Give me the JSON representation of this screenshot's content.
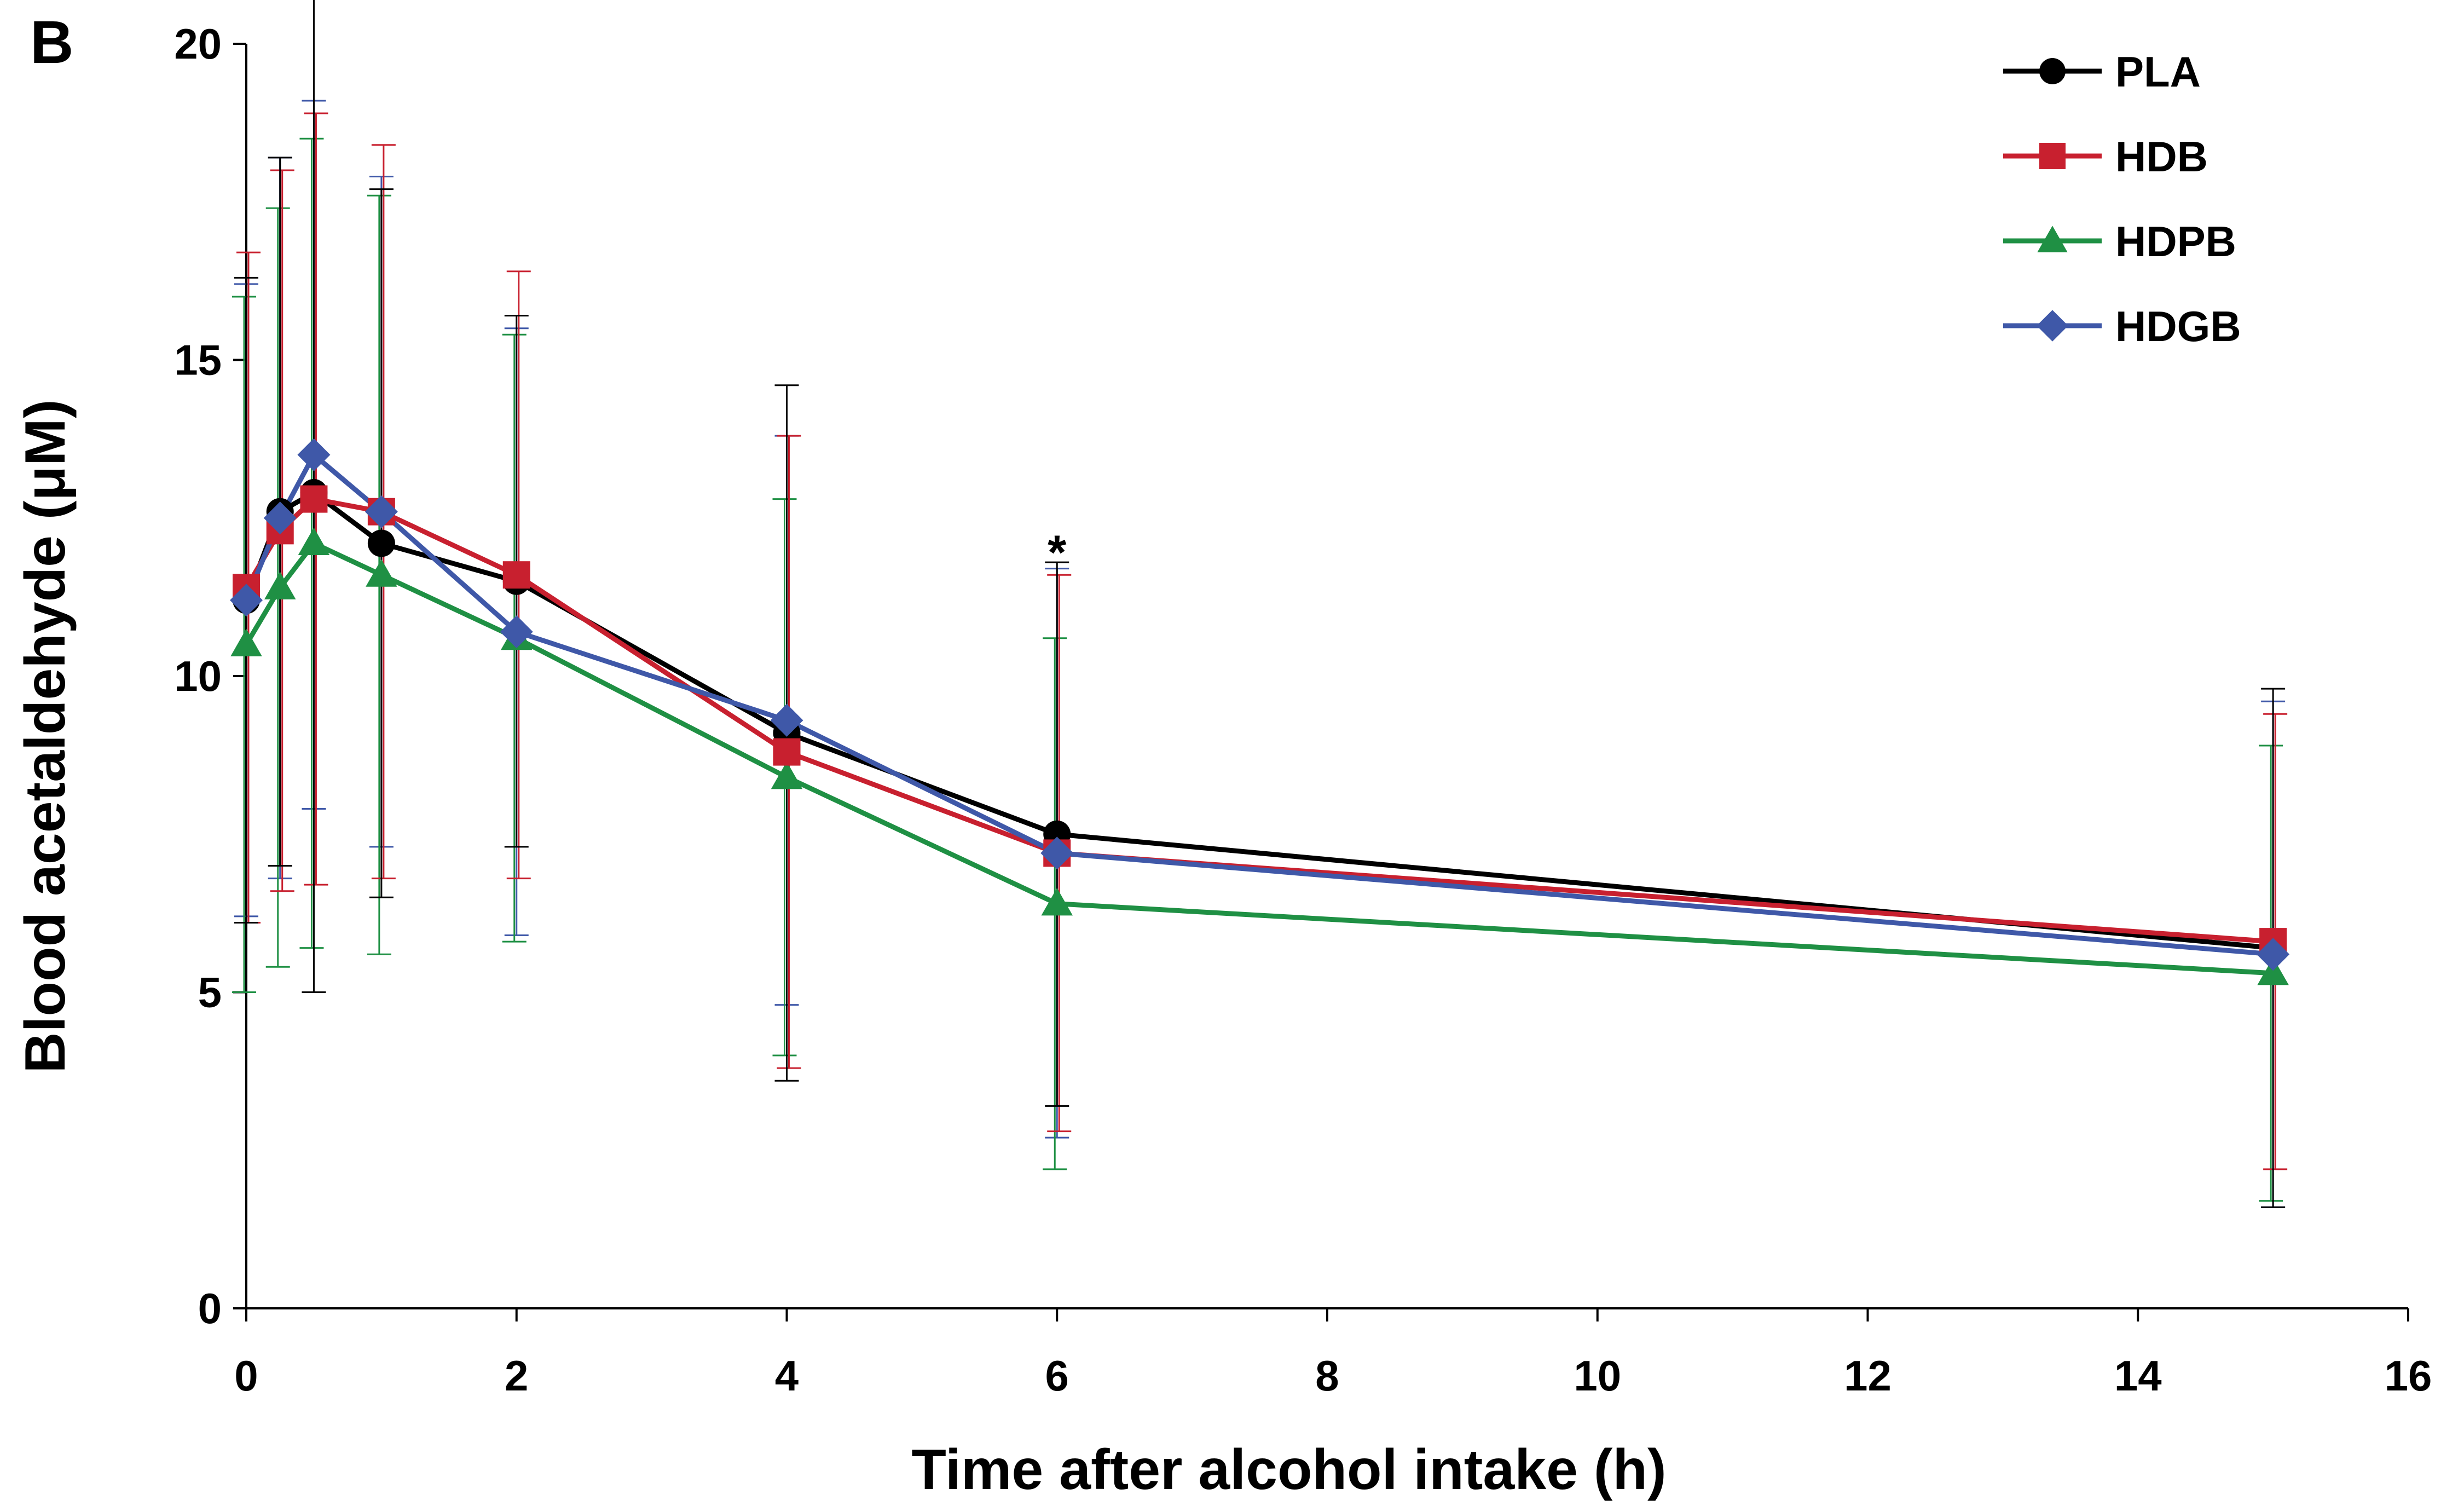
{
  "chart_data": {
    "type": "line",
    "panel_label": "B",
    "title": "",
    "xlabel": "Time after alcohol intake (h)",
    "ylabel": "Blood acetaldehyde (μM)",
    "xlim": [
      0,
      16
    ],
    "ylim": [
      0,
      20
    ],
    "xticks": [
      0,
      2,
      4,
      6,
      8,
      10,
      12,
      14,
      16
    ],
    "yticks": [
      0,
      5,
      10,
      15,
      20
    ],
    "grid": false,
    "legend_position": "top-right",
    "x": [
      0,
      0.25,
      0.5,
      1,
      2,
      4,
      6,
      15
    ],
    "series": [
      {
        "name": "PLA",
        "color": "#000000",
        "marker": "circle",
        "values": [
          11.2,
          12.6,
          12.9,
          12.1,
          11.5,
          9.1,
          7.5,
          5.7
        ],
        "error": [
          5.1,
          5.6,
          7.9,
          5.6,
          4.2,
          5.5,
          4.3,
          4.1
        ]
      },
      {
        "name": "HDB",
        "color": "#c8202f",
        "marker": "square",
        "values": [
          11.4,
          12.3,
          12.8,
          12.6,
          11.6,
          8.8,
          7.2,
          5.8
        ],
        "error": [
          5.3,
          5.7,
          6.1,
          5.8,
          4.8,
          5.0,
          4.4,
          3.6
        ]
      },
      {
        "name": "HDPB",
        "color": "#1f9044",
        "marker": "triangle",
        "values": [
          10.5,
          11.4,
          12.1,
          11.6,
          10.6,
          8.4,
          6.4,
          5.3
        ],
        "error": [
          5.5,
          6.0,
          6.4,
          6.0,
          4.8,
          4.4,
          4.2,
          3.6
        ]
      },
      {
        "name": "HDGB",
        "color": "#3f58a8",
        "marker": "diamond",
        "values": [
          11.2,
          12.5,
          13.5,
          12.6,
          10.7,
          9.3,
          7.2,
          5.6
        ],
        "error": [
          5.0,
          5.7,
          5.6,
          5.3,
          4.8,
          4.5,
          4.5,
          4.0
        ]
      }
    ],
    "annotations": [
      {
        "text": "*",
        "x": 6,
        "y": 12.0
      }
    ],
    "markers_color": {
      "PLA": "#000000",
      "HDB": "#c8202f",
      "HDPB": "#1f9044",
      "HDGB": "#3f58a8"
    }
  }
}
